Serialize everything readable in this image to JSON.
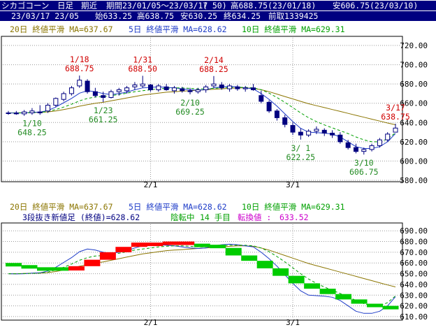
{
  "header": {
    "title": "シカゴコーン",
    "period_type": "日足",
    "contract": "期近",
    "range_label": "期間23/01/05～23/03/17",
    "count": "( 50)",
    "high_info": "高688.75(23/01/18)",
    "low_info": "安606.75(23/03/10)",
    "last_date": "23/03/17 23/05",
    "open": "始633.25",
    "high": "高638.75",
    "low": "安630.25",
    "close": "終634.25",
    "prev": "前取1339425"
  },
  "top_chart": {
    "legend_20": "20日 終値平滑 MA=637.67",
    "legend_5": "5日 終値平滑 MA=628.62",
    "legend_10": "10日 終値平滑 MA=629.31",
    "y_ticks": [
      "720.00",
      "700.00",
      "680.00",
      "660.00",
      "640.00",
      "620.00",
      "600.00",
      "580.00"
    ],
    "x_ticks": [
      "2/1",
      "3/1"
    ],
    "annotations": [
      {
        "date": "1/10",
        "value": "648.25",
        "color": "#228b22"
      },
      {
        "date": "1/18",
        "value": "688.75",
        "color": "#d00000"
      },
      {
        "date": "1/23",
        "value": "661.25",
        "color": "#228b22"
      },
      {
        "date": "1/31",
        "value": "688.50",
        "color": "#d00000"
      },
      {
        "date": "2/10",
        "value": "669.25",
        "color": "#228b22"
      },
      {
        "date": "2/14",
        "value": "688.25",
        "color": "#d00000"
      },
      {
        "date": "3/ 1",
        "value": "622.25",
        "color": "#228b22"
      },
      {
        "date": "3/10",
        "value": "606.75",
        "color": "#228b22"
      },
      {
        "date": "3/17",
        "value": "638.75",
        "color": "#d00000"
      }
    ]
  },
  "bottom_chart": {
    "legend_20": "20日 終値平滑 MA=637.67",
    "legend_5": "5日 終値平滑 MA=628.62",
    "legend_10": "10日 終値平滑 MA=629.31",
    "kagi_label": "3段抜き新値足 (終値)=628.62",
    "trend": "陰転中",
    "bars": "14 手目",
    "reversal_label": "転換値 :",
    "reversal_value": "633.52",
    "y_ticks": [
      "690.00",
      "680.00",
      "670.00",
      "660.00",
      "650.00",
      "640.00",
      "630.00",
      "620.00",
      "610.00"
    ],
    "x_ticks": [
      "2/1",
      "3/1"
    ]
  },
  "colors": {
    "header_bg": "#000080",
    "up": "#ffffff",
    "down": "#000080",
    "ma20": "#8b7500",
    "ma5": "#1e3cc8",
    "ma10": "#00a000",
    "kagi_up": "#ff0000",
    "kagi_down": "#00cc00",
    "grid": "#999999"
  },
  "chart_data": [
    {
      "type": "candlestick",
      "x_ticks": [
        "2/1",
        "3/1"
      ],
      "ylim": [
        580,
        728
      ],
      "series": [
        {
          "name": "price",
          "ohlc": [
            [
              650,
              652,
              648,
              650
            ],
            [
              650,
              652,
              648,
              649
            ],
            [
              649,
              653,
              647,
              651
            ],
            [
              650,
              655,
              648,
              652
            ],
            [
              651,
              658,
              648,
              650
            ],
            [
              652,
              660,
              650,
              658
            ],
            [
              658,
              666,
              656,
              665
            ],
            [
              664,
              672,
              662,
              670
            ],
            [
              670,
              678,
              668,
              676
            ],
            [
              678,
              688.75,
              676,
              684
            ],
            [
              683,
              685,
              670,
              672
            ],
            [
              672,
              676,
              666,
              668
            ],
            [
              668,
              672,
              661.25,
              666
            ],
            [
              666,
              674,
              665,
              672
            ],
            [
              672,
              676,
              668,
              674
            ],
            [
              673,
              678,
              670,
              676
            ],
            [
              677,
              682,
              674,
              679
            ],
            [
              678,
              688.5,
              676,
              680
            ],
            [
              679,
              680,
              672,
              674
            ],
            [
              674,
              680,
              672,
              678
            ],
            [
              677,
              680,
              673,
              674
            ],
            [
              673,
              678,
              670,
              676
            ],
            [
              675,
              677,
              671,
              673
            ],
            [
              673,
              676,
              669.25,
              672
            ],
            [
              672,
              676,
              670,
              674
            ],
            [
              674,
              679,
              671,
              677
            ],
            [
              678,
              688.25,
              676,
              680
            ],
            [
              679,
              682,
              674,
              676
            ],
            [
              675,
              680,
              672,
              678
            ],
            [
              677,
              679,
              673,
              675
            ],
            [
              675,
              678,
              672,
              676
            ],
            [
              676,
              680,
              673,
              674
            ],
            [
              668,
              673,
              660,
              662
            ],
            [
              661,
              663,
              650,
              652
            ],
            [
              652,
              654,
              642,
              645
            ],
            [
              645,
              648,
              635,
              638
            ],
            [
              637,
              640,
              627,
              630
            ],
            [
              630,
              634,
              622.25,
              627
            ],
            [
              627,
              633,
              625,
              631
            ],
            [
              631,
              636,
              628,
              633
            ],
            [
              632,
              634,
              626,
              629
            ],
            [
              629,
              632,
              624,
              627
            ],
            [
              627,
              630,
              618,
              620
            ],
            [
              619,
              622,
              612,
              614
            ],
            [
              614,
              618,
              608,
              610
            ],
            [
              610,
              614,
              606.75,
              612
            ],
            [
              612,
              618,
              610,
              616
            ],
            [
              616,
              624,
              614,
              622
            ],
            [
              622,
              630,
              620,
              628
            ],
            [
              630,
              638.75,
              630.25,
              634.25
            ]
          ]
        },
        {
          "name": "20日 終値平滑",
          "values": [
            650,
            650,
            650.2,
            650.4,
            650.5,
            651,
            652,
            653.5,
            655,
            657,
            658.5,
            660,
            661,
            662.5,
            664,
            665.5,
            667,
            668.5,
            669.5,
            670.5,
            671.5,
            672,
            672.5,
            673,
            673.5,
            674,
            674.5,
            675,
            675.5,
            676,
            676,
            675.5,
            674,
            672,
            669.5,
            667,
            664.5,
            662,
            659.5,
            657.5,
            655.5,
            653.5,
            651.5,
            649.5,
            647.5,
            645.5,
            643.5,
            641.5,
            639.5,
            637.67
          ]
        },
        {
          "name": "5日 終値平滑",
          "values": [
            650,
            649.8,
            650,
            650.5,
            650.8,
            652.5,
            656,
            660.5,
            665,
            670.5,
            673,
            672,
            670,
            669,
            670,
            671.5,
            674,
            676,
            676.5,
            677,
            676.5,
            676,
            675,
            674,
            673.5,
            674,
            676,
            677,
            677.5,
            677,
            676,
            675,
            670,
            664,
            657,
            649,
            641,
            634,
            630,
            629.5,
            629,
            628,
            625,
            620,
            615,
            613,
            613,
            615,
            620,
            628.62
          ]
        },
        {
          "name": "10日 終値平滑",
          "values": [
            650,
            650,
            650.1,
            650.3,
            650.5,
            651.5,
            653.5,
            656,
            659,
            662.5,
            665,
            666.5,
            667,
            668,
            669,
            670.5,
            672,
            673,
            674,
            675,
            675.5,
            676,
            676,
            675.5,
            675,
            675,
            675.5,
            676,
            676.5,
            676.5,
            676.5,
            676,
            674,
            670.5,
            666,
            661,
            655.5,
            650,
            645,
            641,
            637.5,
            634.5,
            631.5,
            628.5,
            625,
            622,
            620,
            620,
            623,
            629.31
          ]
        }
      ]
    },
    {
      "type": "bar",
      "title": "3段抜き新値足 (終値)=628.62",
      "ylim": [
        608,
        696
      ],
      "series": [
        {
          "name": "3段抜き新値足",
          "blocks": [
            [
              660,
              658,
              "down"
            ],
            [
              658,
              655,
              "down"
            ],
            [
              655,
              656,
              "down"
            ],
            [
              656,
              653,
              "down"
            ],
            [
              653,
              657,
              "up"
            ],
            [
              657,
              663,
              "up"
            ],
            [
              663,
              670,
              "up"
            ],
            [
              670,
              675,
              "up"
            ],
            [
              675,
              679,
              "up"
            ],
            [
              679,
              678,
              "up"
            ],
            [
              678,
              680,
              "up"
            ],
            [
              680,
              678,
              "up"
            ],
            [
              678,
              677,
              "down"
            ],
            [
              677,
              674,
              "down"
            ],
            [
              674,
              667,
              "down"
            ],
            [
              667,
              662,
              "down"
            ],
            [
              662,
              655,
              "down"
            ],
            [
              655,
              648,
              "down"
            ],
            [
              648,
              641,
              "down"
            ],
            [
              641,
              636,
              "down"
            ],
            [
              636,
              631,
              "down"
            ],
            [
              631,
              626,
              "down"
            ],
            [
              626,
              622,
              "down"
            ],
            [
              622,
              620,
              "down"
            ],
            [
              620,
              618,
              "down"
            ]
          ]
        }
      ]
    }
  ]
}
